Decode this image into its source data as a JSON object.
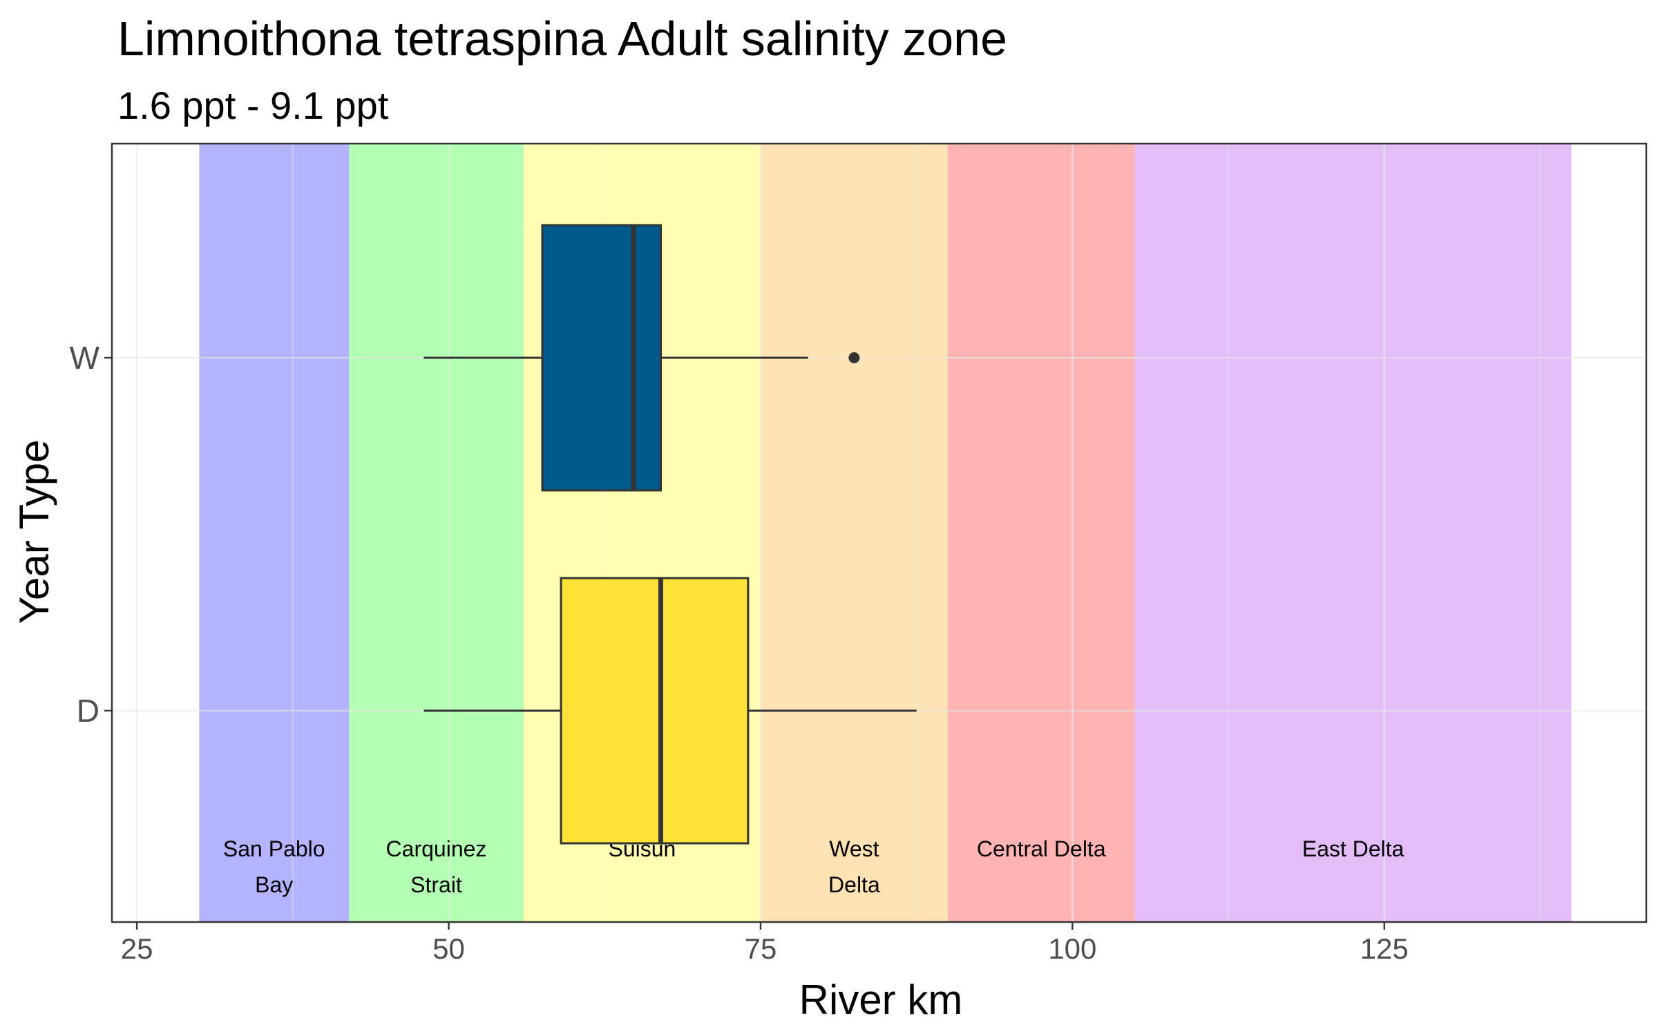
{
  "chart_data": {
    "type": "boxplot",
    "orientation": "horizontal",
    "title": "Limnoithona tetraspina Adult  salinity zone",
    "subtitle": "1.6 ppt - 9.1 ppt",
    "xlabel": "River km",
    "ylabel": "Year Type",
    "xlim": [
      23,
      146
    ],
    "xticks": [
      25,
      50,
      75,
      100,
      125
    ],
    "categories": [
      "D",
      "W"
    ],
    "grid": true,
    "zones": [
      {
        "label": "San Pablo\nBay",
        "start": 30,
        "end": 42,
        "color": "#b3b3ff"
      },
      {
        "label": "Carquinez\nStrait",
        "start": 42,
        "end": 56,
        "color": "#b3ffb3"
      },
      {
        "label": "Suisun",
        "start": 56,
        "end": 75,
        "color": "#ffffb3"
      },
      {
        "label": "West\nDelta",
        "start": 75,
        "end": 90,
        "color": "#fde3b3"
      },
      {
        "label": "Central Delta",
        "start": 90,
        "end": 105,
        "color": "#ffb3b3"
      },
      {
        "label": "East Delta",
        "start": 105,
        "end": 140,
        "color": "#e3bdfa"
      }
    ],
    "series": [
      {
        "category": "W",
        "whisker_low": 48,
        "q1": 57.5,
        "median": 64.8,
        "q3": 67,
        "whisker_high": 78.8,
        "outliers": [
          82.5
        ],
        "color": "#005a8c"
      },
      {
        "category": "D",
        "whisker_low": 48,
        "q1": 59,
        "median": 67,
        "q3": 74,
        "whisker_high": 87.5,
        "outliers": [],
        "color": "#fde333"
      }
    ]
  }
}
